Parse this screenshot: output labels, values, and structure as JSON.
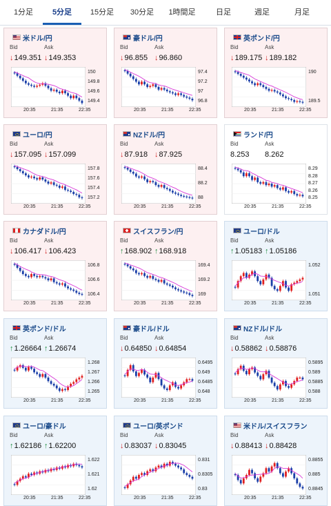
{
  "tabs": [
    "1分足",
    "5分足",
    "15分足",
    "30分足",
    "1時間足",
    "日足",
    "週足",
    "月足"
  ],
  "active_tab": 1,
  "labels": {
    "bid": "Bid",
    "ask": "Ask"
  },
  "colors": {
    "down": "#d02020",
    "up": "#1a8a3a",
    "candle_up": "#e02020",
    "candle_down": "#1a3ea8",
    "ma": "#d838d8",
    "ma2": "#3aa0e0"
  },
  "cards": [
    {
      "pair": "米ドル/円",
      "flag": "us",
      "dir": "down",
      "bid": "149.351",
      "ask": "149.353",
      "bg": "down",
      "yticks": [
        "150",
        "149.8",
        "149.6",
        "149.4"
      ],
      "xticks": [
        "20:35",
        "21:35",
        "22:35"
      ],
      "chart_data": {
        "type": "candlestick",
        "trend": [
          149.95,
          149.9,
          149.85,
          149.8,
          149.75,
          149.72,
          149.7,
          149.68,
          149.7,
          149.72,
          149.75,
          149.7,
          149.65,
          149.6,
          149.62,
          149.58,
          149.55,
          149.6,
          149.55,
          149.5,
          149.45,
          149.5,
          149.45,
          149.4,
          149.35
        ],
        "ylim": [
          149.3,
          150.05
        ]
      }
    },
    {
      "pair": "豪ドル/円",
      "flag": "au",
      "dir": "down",
      "bid": "96.855",
      "ask": "96.860",
      "bg": "down",
      "yticks": [
        "97.4",
        "97.2",
        "97",
        "96.8"
      ],
      "xticks": [
        "20:35",
        "21:35",
        "22:35"
      ],
      "chart_data": {
        "type": "candlestick",
        "trend": [
          97.4,
          97.35,
          97.3,
          97.25,
          97.2,
          97.15,
          97.2,
          97.15,
          97.1,
          97.12,
          97.15,
          97.1,
          97.05,
          97.08,
          97.05,
          97.02,
          97.0,
          96.98,
          96.95,
          96.98,
          96.95,
          96.92,
          96.9,
          96.88,
          96.85
        ],
        "ylim": [
          96.75,
          97.45
        ]
      }
    },
    {
      "pair": "英ポンド/円",
      "flag": "uk",
      "dir": "down",
      "bid": "189.175",
      "ask": "189.182",
      "bg": "down",
      "yticks": [
        "190",
        "189.5"
      ],
      "xticks": [
        "20:35",
        "21:35",
        "22:35"
      ],
      "chart_data": {
        "type": "candlestick",
        "trend": [
          190.0,
          189.95,
          189.9,
          189.85,
          189.8,
          189.75,
          189.7,
          189.65,
          189.7,
          189.65,
          189.6,
          189.55,
          189.5,
          189.52,
          189.48,
          189.45,
          189.4,
          189.35,
          189.3,
          189.28,
          189.25,
          189.2,
          189.22,
          189.2,
          189.18
        ],
        "ylim": [
          189.1,
          190.1
        ]
      }
    },
    {
      "pair": "ユーロ/円",
      "flag": "eu",
      "dir": "down",
      "bid": "157.095",
      "ask": "157.099",
      "bg": "down",
      "yticks": [
        "157.8",
        "157.6",
        "157.4",
        "157.2"
      ],
      "xticks": [
        "20:35",
        "21:35",
        "22:35"
      ],
      "chart_data": {
        "type": "candlestick",
        "trend": [
          157.85,
          157.8,
          157.75,
          157.7,
          157.65,
          157.6,
          157.62,
          157.58,
          157.55,
          157.6,
          157.55,
          157.5,
          157.45,
          157.48,
          157.42,
          157.4,
          157.35,
          157.38,
          157.3,
          157.28,
          157.25,
          157.2,
          157.18,
          157.12,
          157.1
        ],
        "ylim": [
          157.0,
          157.9
        ]
      }
    },
    {
      "pair": "NZドル/円",
      "flag": "nz",
      "dir": "down",
      "bid": "87.918",
      "ask": "87.925",
      "bg": "down",
      "yticks": [
        "88.4",
        "88.2",
        "88"
      ],
      "xticks": [
        "20:35",
        "21:35",
        "22:35"
      ],
      "chart_data": {
        "type": "candlestick",
        "trend": [
          88.45,
          88.42,
          88.38,
          88.35,
          88.3,
          88.28,
          88.3,
          88.25,
          88.2,
          88.22,
          88.2,
          88.15,
          88.12,
          88.15,
          88.1,
          88.08,
          88.05,
          88.02,
          88.0,
          87.98,
          87.96,
          87.95,
          87.94,
          87.93,
          87.92
        ],
        "ylim": [
          87.85,
          88.5
        ]
      }
    },
    {
      "pair": "ランド/円",
      "flag": "za",
      "dir": "none",
      "bid": "8.253",
      "ask": "8.262",
      "bg": "flat",
      "yticks": [
        "8.29",
        "8.28",
        "8.27",
        "8.26",
        "8.25"
      ],
      "xticks": [
        "20:35",
        "21:35",
        "22:35"
      ],
      "chart_data": {
        "type": "candlestick",
        "trend": [
          8.29,
          8.288,
          8.285,
          8.28,
          8.284,
          8.28,
          8.275,
          8.278,
          8.272,
          8.27,
          8.272,
          8.268,
          8.27,
          8.266,
          8.268,
          8.264,
          8.262,
          8.265,
          8.26,
          8.258,
          8.26,
          8.256,
          8.254,
          8.255,
          8.253
        ],
        "ylim": [
          8.245,
          8.295
        ]
      }
    },
    {
      "pair": "カナダドル/円",
      "flag": "ca",
      "dir": "down",
      "bid": "106.417",
      "ask": "106.423",
      "bg": "down",
      "yticks": [
        "106.8",
        "106.6",
        "106.4"
      ],
      "xticks": [
        "20:35",
        "21:35",
        "22:35"
      ],
      "chart_data": {
        "type": "candlestick",
        "trend": [
          106.9,
          106.85,
          106.8,
          106.75,
          106.72,
          106.7,
          106.75,
          106.72,
          106.7,
          106.72,
          106.7,
          106.68,
          106.65,
          106.68,
          106.62,
          106.6,
          106.58,
          106.6,
          106.55,
          106.52,
          106.5,
          106.48,
          106.45,
          106.43,
          106.42
        ],
        "ylim": [
          106.35,
          106.95
        ]
      }
    },
    {
      "pair": "スイスフラン/円",
      "flag": "ch",
      "dir": "up",
      "bid": "168.902",
      "ask": "168.918",
      "bg": "down",
      "yticks": [
        "169.4",
        "169.2",
        "169"
      ],
      "xticks": [
        "20:35",
        "21:35",
        "22:35"
      ],
      "chart_data": {
        "type": "candlestick",
        "trend": [
          169.45,
          169.42,
          169.38,
          169.35,
          169.3,
          169.28,
          169.3,
          169.25,
          169.22,
          169.25,
          169.2,
          169.18,
          169.15,
          169.18,
          169.12,
          169.1,
          169.08,
          169.05,
          169.02,
          169.0,
          168.98,
          168.96,
          168.95,
          168.92,
          168.9
        ],
        "ylim": [
          168.85,
          169.5
        ]
      }
    },
    {
      "pair": "ユーロ/ドル",
      "flag": "eu",
      "dir": "up",
      "bid": "1.05183",
      "ask": "1.05186",
      "bg": "up",
      "yticks": [
        "1.052",
        "1.051"
      ],
      "xticks": [
        "20:35",
        "21:35",
        "22:35"
      ],
      "chart_data": {
        "type": "candlestick",
        "trend": [
          1.0512,
          1.0516,
          1.0519,
          1.0521,
          1.0518,
          1.052,
          1.0522,
          1.0519,
          1.0516,
          1.0514,
          1.0517,
          1.052,
          1.0518,
          1.0513,
          1.0511,
          1.051,
          1.0513,
          1.0516,
          1.0512,
          1.051,
          1.0514,
          1.0515,
          1.0516,
          1.0517,
          1.0518
        ],
        "ylim": [
          1.0505,
          1.0528
        ]
      }
    },
    {
      "pair": "英ポンド/ドル",
      "flag": "uk",
      "dir": "up",
      "bid": "1.26664",
      "ask": "1.26674",
      "bg": "up",
      "yticks": [
        "1.268",
        "1.267",
        "1.266",
        "1.265"
      ],
      "xticks": [
        "20:35",
        "21:35",
        "22:35"
      ],
      "chart_data": {
        "type": "candlestick",
        "trend": [
          1.2672,
          1.2676,
          1.2678,
          1.2675,
          1.2672,
          1.2676,
          1.2674,
          1.267,
          1.2668,
          1.2665,
          1.2668,
          1.2664,
          1.266,
          1.2657,
          1.2655,
          1.2652,
          1.2649,
          1.2651,
          1.265,
          1.2654,
          1.2657,
          1.2659,
          1.2662,
          1.2664,
          1.2666
        ],
        "ylim": [
          1.2643,
          1.2685
        ]
      }
    },
    {
      "pair": "豪ドル/ドル",
      "flag": "au",
      "dir": "down",
      "bid": "0.64850",
      "ask": "0.64854",
      "bg": "up",
      "yticks": [
        "0.6495",
        "0.649",
        "0.6485",
        "0.648"
      ],
      "xticks": [
        "20:35",
        "21:35",
        "22:35"
      ],
      "chart_data": {
        "type": "candlestick",
        "trend": [
          0.6488,
          0.6492,
          0.6495,
          0.6491,
          0.6488,
          0.649,
          0.6492,
          0.6489,
          0.6487,
          0.6484,
          0.6487,
          0.649,
          0.6486,
          0.6482,
          0.648,
          0.6479,
          0.6482,
          0.6484,
          0.6481,
          0.648,
          0.6482,
          0.6484,
          0.6486,
          0.6486,
          0.6485
        ],
        "ylim": [
          0.6475,
          0.6499
        ]
      }
    },
    {
      "pair": "NZドル/ドル",
      "flag": "nz",
      "dir": "down",
      "bid": "0.58862",
      "ask": "0.58876",
      "bg": "up",
      "yticks": [
        "0.5895",
        "0.589",
        "0.5885",
        "0.588"
      ],
      "xticks": [
        "20:35",
        "21:35",
        "22:35"
      ],
      "chart_data": {
        "type": "candlestick",
        "trend": [
          0.5889,
          0.5892,
          0.5894,
          0.5891,
          0.5889,
          0.5892,
          0.5893,
          0.589,
          0.5888,
          0.5886,
          0.5889,
          0.5891,
          0.5887,
          0.5884,
          0.5882,
          0.588,
          0.5883,
          0.5885,
          0.5882,
          0.5881,
          0.5883,
          0.5885,
          0.5887,
          0.5887,
          0.5886
        ],
        "ylim": [
          0.5876,
          0.5898
        ]
      }
    },
    {
      "pair": "ユーロ/豪ドル",
      "flag": "eu",
      "dir": "up",
      "bid": "1.62186",
      "ask": "1.62200",
      "bg": "up",
      "yticks": [
        "1.622",
        "1.621",
        "1.62"
      ],
      "xticks": [
        "20:35",
        "21:35",
        "22:35"
      ],
      "chart_data": {
        "type": "candlestick",
        "trend": [
          1.6205,
          1.6208,
          1.621,
          1.6212,
          1.6211,
          1.6214,
          1.6213,
          1.6215,
          1.6214,
          1.6216,
          1.6215,
          1.6217,
          1.6216,
          1.6218,
          1.6217,
          1.6219,
          1.6218,
          1.622,
          1.6219,
          1.6221,
          1.622,
          1.6222,
          1.6221,
          1.622,
          1.6219
        ],
        "ylim": [
          1.6198,
          1.6228
        ]
      }
    },
    {
      "pair": "ユーロ/英ポンド",
      "flag": "eu",
      "dir": "down",
      "bid": "0.83037",
      "ask": "0.83045",
      "bg": "up",
      "yticks": [
        "0.831",
        "0.8305",
        "0.83"
      ],
      "xticks": [
        "20:35",
        "21:35",
        "22:35"
      ],
      "chart_data": {
        "type": "candlestick",
        "trend": [
          0.8299,
          0.8301,
          0.8303,
          0.8305,
          0.8304,
          0.8306,
          0.8307,
          0.8306,
          0.8308,
          0.8309,
          0.8308,
          0.831,
          0.8311,
          0.831,
          0.8312,
          0.8311,
          0.8313,
          0.8312,
          0.8311,
          0.831,
          0.8309,
          0.8307,
          0.8306,
          0.8305,
          0.8304
        ],
        "ylim": [
          0.8296,
          0.8316
        ]
      }
    },
    {
      "pair": "米ドル/スイスフラン",
      "flag": "us",
      "dir": "down",
      "bid": "0.88413",
      "ask": "0.88428",
      "bg": "up",
      "yticks": [
        "0.8855",
        "0.885",
        "0.8845"
      ],
      "xticks": [
        "20:35",
        "21:35",
        "22:35"
      ],
      "chart_data": {
        "type": "candlestick",
        "trend": [
          0.8849,
          0.8846,
          0.8844,
          0.8847,
          0.8849,
          0.8852,
          0.885,
          0.8847,
          0.8845,
          0.8848,
          0.885,
          0.8853,
          0.8851,
          0.8854,
          0.8856,
          0.8853,
          0.885,
          0.8848,
          0.8851,
          0.8853,
          0.885,
          0.8847,
          0.8844,
          0.8842,
          0.8841
        ],
        "ylim": [
          0.8838,
          0.886
        ]
      }
    }
  ]
}
